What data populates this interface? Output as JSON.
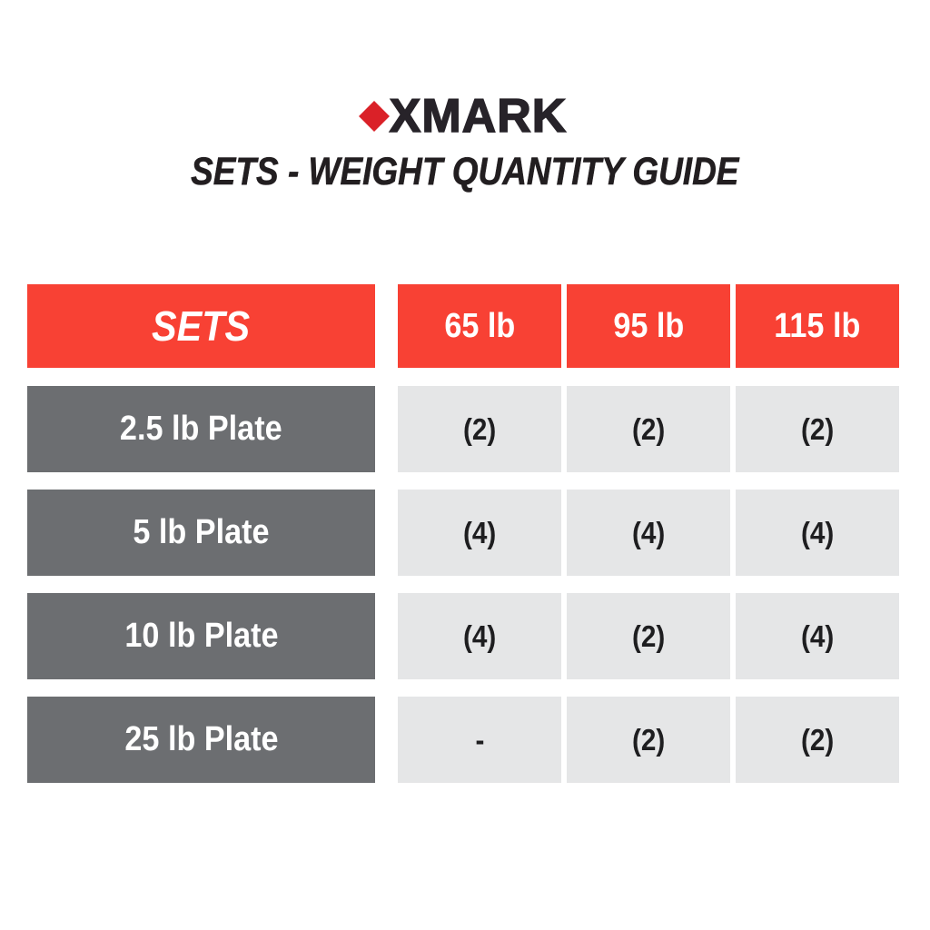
{
  "header": {
    "logo": {
      "text": "XMARK",
      "diamond_color": "#da2128"
    },
    "title": "SETS - WEIGHT QUANTITY GUIDE"
  },
  "colors": {
    "table_red": "#f84134",
    "row_label_gray": "#6c6e71",
    "value_cell_gray": "#e5e6e7",
    "text_dark": "#221e20",
    "text_white": "#ffffff"
  },
  "chart_data": {
    "type": "table",
    "title": "SETS - WEIGHT QUANTITY GUIDE",
    "columns": [
      "SETS",
      "65 lb",
      "95 lb",
      "115 lb"
    ],
    "rows": [
      {
        "label": "2.5 lb Plate",
        "values": [
          "(2)",
          "(2)",
          "(2)"
        ]
      },
      {
        "label": "5 lb Plate",
        "values": [
          "(4)",
          "(4)",
          "(4)"
        ]
      },
      {
        "label": "10 lb Plate",
        "values": [
          "(4)",
          "(2)",
          "(4)"
        ]
      },
      {
        "label": "25 lb Plate",
        "values": [
          "-",
          "(2)",
          "(2)"
        ]
      }
    ]
  }
}
